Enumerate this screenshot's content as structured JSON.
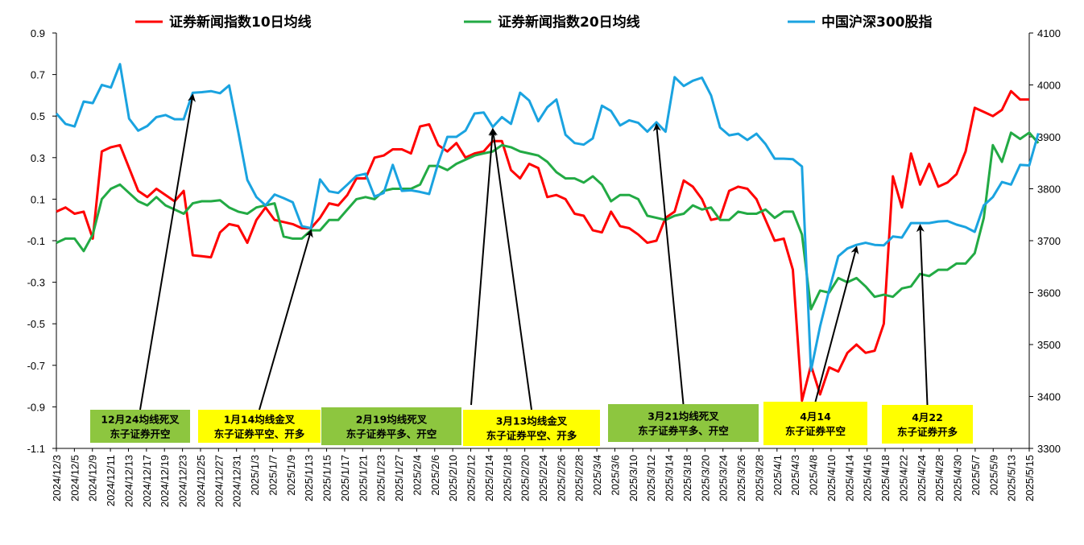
{
  "chart_data": {
    "type": "line",
    "title": "",
    "xlabel": "",
    "ylabel": "",
    "ylim": [
      -1.1,
      0.9
    ],
    "y_ticks": [
      "0.9",
      "0.7",
      "0.5",
      "0.3",
      "0.1",
      "-0.1",
      "-0.3",
      "-0.5",
      "-0.7",
      "-0.9",
      "-1.1"
    ],
    "y2lim": [
      3300,
      4100
    ],
    "y2_ticks": [
      "4100",
      "4000",
      "3900",
      "3800",
      "3700",
      "3600",
      "3500",
      "3400",
      "3300"
    ],
    "legend_position": "top",
    "grid": false,
    "x_tick_labels": [
      "2024/12/3",
      "2024/12/5",
      "2024/12/9",
      "2024/12/11",
      "2024/12/13",
      "2024/12/17",
      "2024/12/19",
      "2024/12/23",
      "2024/12/25",
      "2024/12/27",
      "2024/12/31",
      "2025/1/3",
      "2025/1/7",
      "2025/1/9",
      "2025/1/13",
      "2025/1/15",
      "2025/1/17",
      "2025/1/21",
      "2025/1/23",
      "2025/1/27",
      "2025/2/4",
      "2025/2/6",
      "2025/2/10",
      "2025/2/12",
      "2025/2/14",
      "2025/2/18",
      "2025/2/20",
      "2025/2/24",
      "2025/2/26",
      "2025/2/28",
      "2025/3/4",
      "2025/3/6",
      "2025/3/10",
      "2025/3/12",
      "2025/3/14",
      "2025/3/18",
      "2025/3/20",
      "2025/3/24",
      "2025/3/26",
      "2025/3/28",
      "2025/4/1",
      "2025/4/3",
      "2025/4/8",
      "2025/4/10",
      "2025/4/14",
      "2025/4/16",
      "2025/4/18",
      "2025/4/22",
      "2025/4/24",
      "2025/4/28",
      "2025/4/30",
      "2025/5/7",
      "2025/5/9",
      "2025/5/13",
      "2025/5/15"
    ],
    "series": [
      {
        "name": "证券新闻指数10日均线",
        "color": "#ff0000",
        "axis": "left",
        "values": [
          0.04,
          0.06,
          0.03,
          0.04,
          -0.09,
          0.33,
          0.35,
          0.36,
          0.25,
          0.14,
          0.11,
          0.15,
          0.12,
          0.09,
          0.14,
          -0.17,
          -0.175,
          -0.18,
          -0.06,
          -0.02,
          -0.03,
          -0.11,
          0.0,
          0.06,
          0.0,
          -0.01,
          -0.02,
          -0.04,
          -0.04,
          0.01,
          0.08,
          0.07,
          0.12,
          0.2,
          0.2,
          0.3,
          0.31,
          0.34,
          0.34,
          0.32,
          0.45,
          0.46,
          0.36,
          0.33,
          0.37,
          0.3,
          0.32,
          0.33,
          0.38,
          0.38,
          0.24,
          0.2,
          0.27,
          0.25,
          0.11,
          0.12,
          0.1,
          0.03,
          0.02,
          -0.05,
          -0.06,
          0.04,
          -0.03,
          -0.04,
          -0.07,
          -0.11,
          -0.1,
          0.01,
          0.04,
          0.19,
          0.16,
          0.1,
          0.0,
          0.01,
          0.14,
          0.16,
          0.15,
          0.1,
          0.0,
          -0.1,
          -0.09,
          -0.24,
          -0.87,
          -0.7,
          -0.84,
          -0.71,
          -0.73,
          -0.64,
          -0.6,
          -0.64,
          -0.63,
          -0.5,
          0.21,
          0.06,
          0.32,
          0.17,
          0.27,
          0.16,
          0.18,
          0.22,
          0.33,
          0.54,
          0.52,
          0.5,
          0.53,
          0.62,
          0.58,
          0.58
        ]
      },
      {
        "name": "证券新闻指数20日均线",
        "color": "#22aa44",
        "axis": "left",
        "values": [
          -0.11,
          -0.09,
          -0.09,
          -0.15,
          -0.07,
          0.1,
          0.15,
          0.17,
          0.13,
          0.09,
          0.07,
          0.11,
          0.07,
          0.05,
          0.03,
          0.08,
          0.09,
          0.09,
          0.095,
          0.06,
          0.04,
          0.03,
          0.06,
          0.07,
          0.08,
          -0.08,
          -0.09,
          -0.09,
          -0.05,
          -0.05,
          0.0,
          0.0,
          0.05,
          0.1,
          0.11,
          0.1,
          0.14,
          0.15,
          0.15,
          0.15,
          0.17,
          0.26,
          0.26,
          0.24,
          0.27,
          0.29,
          0.31,
          0.32,
          0.33,
          0.36,
          0.35,
          0.33,
          0.32,
          0.31,
          0.28,
          0.23,
          0.2,
          0.2,
          0.18,
          0.21,
          0.17,
          0.09,
          0.12,
          0.12,
          0.1,
          0.02,
          0.01,
          0.0,
          0.02,
          0.03,
          0.07,
          0.05,
          0.06,
          0.0,
          0.0,
          0.04,
          0.03,
          0.03,
          0.05,
          0.01,
          0.04,
          0.04,
          -0.07,
          -0.43,
          -0.34,
          -0.35,
          -0.28,
          -0.3,
          -0.28,
          -0.32,
          -0.37,
          -0.36,
          -0.37,
          -0.33,
          -0.32,
          -0.26,
          -0.27,
          -0.24,
          -0.24,
          -0.21,
          -0.21,
          -0.16,
          0.01,
          0.36,
          0.28,
          0.42,
          0.39,
          0.42,
          0.37
        ]
      },
      {
        "name": "中国沪深300股指",
        "color": "#1aa3e0",
        "axis": "right",
        "values": [
          3945,
          3925,
          3920,
          3968,
          3965,
          4000,
          3995,
          4040,
          3935,
          3912,
          3921,
          3938,
          3942,
          3934,
          3934,
          3985,
          3986,
          3988,
          3984,
          3999,
          3910,
          3817,
          3784,
          3768,
          3789,
          3782,
          3774,
          3728,
          3724,
          3818,
          3795,
          3792,
          3808,
          3825,
          3829,
          3785,
          3792,
          3846,
          3796,
          3797,
          3794,
          3790,
          3850,
          3900,
          3900,
          3912,
          3945,
          3947,
          3919,
          3938,
          3925,
          3985,
          3970,
          3930,
          3957,
          3972,
          3904,
          3888,
          3885,
          3897,
          3960,
          3950,
          3922,
          3932,
          3927,
          3910,
          3928,
          3910,
          4015,
          3998,
          4008,
          4014,
          3980,
          3918,
          3903,
          3906,
          3894,
          3906,
          3886,
          3858,
          3858,
          3857,
          3843,
          3450,
          3535,
          3605,
          3670,
          3685,
          3692,
          3696,
          3692,
          3691,
          3708,
          3706,
          3734,
          3734,
          3734,
          3737,
          3738,
          3731,
          3726,
          3717,
          3768,
          3784,
          3813,
          3808,
          3846,
          3845,
          3907
        ]
      }
    ],
    "annotations": [
      {
        "line1": "12月24均线死叉",
        "line2": "东子证券开空",
        "box_color": "#8dc63f",
        "arrow_target_index": 15
      },
      {
        "line1": "1月14均线金叉",
        "line2": "东子证券平空、开多",
        "box_color": "#ffff00",
        "arrow_target_index": 28
      },
      {
        "line1": "2月19均线死叉",
        "line2": "东子证券平多、开空",
        "box_color": "#8dc63f",
        "arrow_target_index": null
      },
      {
        "line1": "3月13均线金叉",
        "line2": "东子证券平空、开多",
        "box_color": "#ffff00",
        "arrow_target_index": 48
      },
      {
        "line1": "3月21均线死叉",
        "line2": "东子证券平多、开空",
        "box_color": "#8dc63f",
        "arrow_target_index": 66
      },
      {
        "line1": "4月14",
        "line2": "东子证券平空",
        "box_color": "#ffff00",
        "arrow_target_index": 88
      },
      {
        "line1": "4月22",
        "line2": "东子证券开多",
        "box_color": "#ffff00",
        "arrow_target_index": 95
      }
    ]
  }
}
